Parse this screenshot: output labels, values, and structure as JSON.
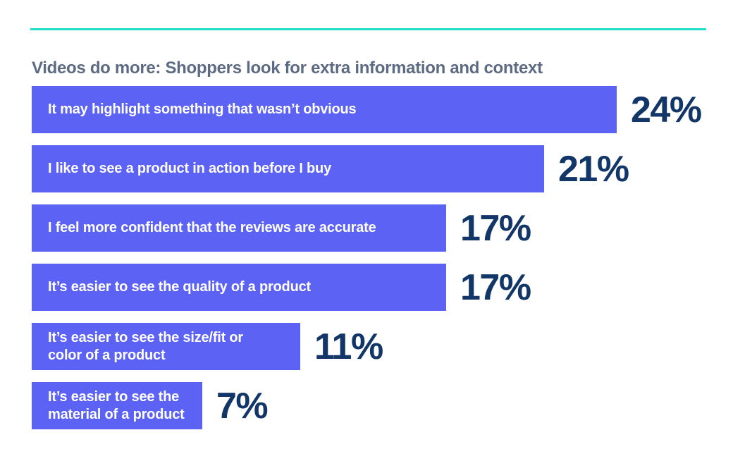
{
  "page": {
    "title": "Videos do more: Shoppers look for extra information and context"
  },
  "theme": {
    "accent_rule_color": "#1FDFC9",
    "bar_color": "#5C62F4",
    "bar_label_color": "#FFFFFF",
    "percent_label_color": "#123668",
    "title_color": "#5C6B83",
    "background_color": "#FFFFFF"
  },
  "chart_data": {
    "type": "bar",
    "orientation": "horizontal",
    "title": "Videos do more: Shoppers look for extra information and context",
    "categories": [
      "It may highlight something that wasn’t obvious",
      "I like to see a product in action before I buy",
      "I feel more confident that the reviews are accurate",
      "It’s easier to see the quality of a product",
      "It’s easier to see the size/fit or\ncolor of a product",
      "It’s easier to see the\nmaterial of a product"
    ],
    "values": [
      24,
      21,
      17,
      17,
      11,
      7
    ],
    "value_labels": [
      "24%",
      "21%",
      "17%",
      "17%",
      "11%",
      "7%"
    ],
    "unit": "%",
    "xlim": [
      0,
      30
    ],
    "grid": false,
    "legend": false,
    "value_label_position": "right-of-bar",
    "category_label_position": "inside-bar"
  }
}
